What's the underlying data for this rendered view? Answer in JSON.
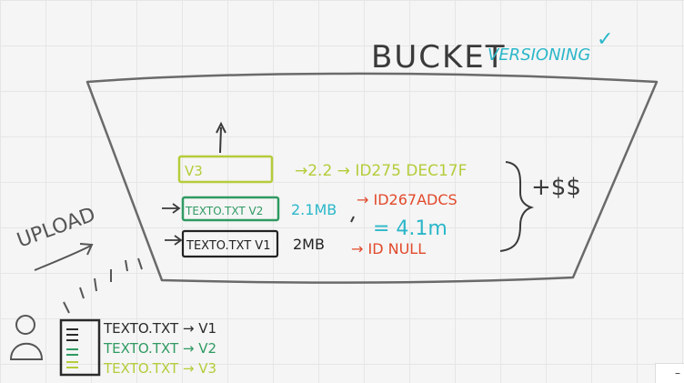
{
  "title": {
    "main": "BUCKET",
    "feature": "VERSIONING",
    "check": "✓"
  },
  "colors": {
    "ink": "#3a3a3a",
    "cyan": "#2bb7c9",
    "lime": "#b5cc3a",
    "green": "#2f9a62",
    "red": "#e2492b",
    "grey": "#6a6a6a"
  },
  "versions": [
    {
      "box": "V3",
      "size": "",
      "id": "→2.2 → ID275 DEC17F"
    },
    {
      "box": "TEXTO.TXT V2",
      "size": "2.1MB",
      "id": "→ ID267ADCS"
    },
    {
      "box": "TEXTO.TXT V1",
      "size": "2MB",
      "id": "→ ID NULL"
    }
  ],
  "total": "= 4.1m",
  "cost": "+$$",
  "upload_label": "UPLOAD",
  "uploads": [
    {
      "label": "TEXTO.TXT → V1"
    },
    {
      "label": "TEXTO.TXT → V2"
    },
    {
      "label": "TEXTO.TXT → V3"
    }
  ],
  "corner_button": "–"
}
